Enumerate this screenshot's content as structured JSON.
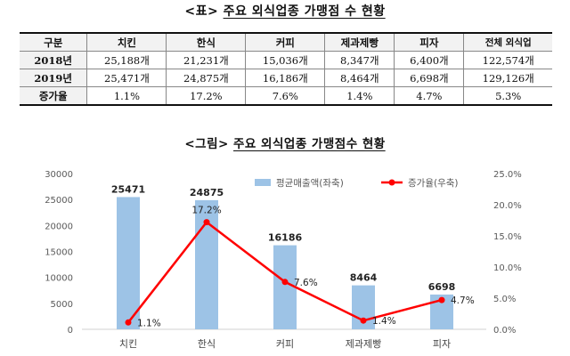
{
  "table_title": {
    "prefix": "<표>",
    "main": "주요 외식업종 가맹점 수 현황"
  },
  "table": {
    "headers": [
      "구분",
      "치킨",
      "한식",
      "커피",
      "제과제빵",
      "피자",
      "전체 외식업"
    ],
    "rows": [
      {
        "label": "2018년",
        "cells": [
          "25,188개",
          "21,231개",
          "15,036개",
          "8,347개",
          "6,400개",
          "122,574개"
        ]
      },
      {
        "label": "2019년",
        "cells": [
          "25,471개",
          "24,875개",
          "16,186개",
          "8,464개",
          "6,698개",
          "129,126개"
        ]
      },
      {
        "label": "증가율",
        "cells": [
          "1.1%",
          "17.2%",
          "7.6%",
          "1.4%",
          "4.7%",
          "5.3%"
        ]
      }
    ]
  },
  "figure_title": {
    "prefix": "<그림>",
    "main": "주요 외식업종 가맹점수 현황"
  },
  "chart_data": {
    "type": "bar",
    "categories": [
      "치킨",
      "한식",
      "커피",
      "제과제빵",
      "피자"
    ],
    "series": [
      {
        "name": "평균매출액(좌축)",
        "type": "bar",
        "axis": "left",
        "values": [
          25471,
          24875,
          16186,
          8464,
          6698
        ],
        "labels": [
          "25471",
          "24875",
          "16186",
          "8464",
          "6698"
        ]
      },
      {
        "name": "증가율(우축)",
        "type": "line",
        "axis": "right",
        "values": [
          1.1,
          17.2,
          7.6,
          1.4,
          4.7
        ],
        "labels": [
          "1.1%",
          "17.2%",
          "7.6%",
          "1.4%",
          "4.7%"
        ]
      }
    ],
    "ylim_left": [
      0,
      30000
    ],
    "left_ticks": [
      0,
      5000,
      10000,
      15000,
      20000,
      25000,
      30000
    ],
    "left_tick_labels": [
      "0",
      "5000",
      "10000",
      "15000",
      "20000",
      "25000",
      "30000"
    ],
    "ylim_right": [
      0,
      25
    ],
    "right_ticks": [
      0,
      5,
      10,
      15,
      20,
      25
    ],
    "right_tick_labels": [
      "0.0%",
      "5.0%",
      "10.0%",
      "15.0%",
      "20.0%",
      "25.0%"
    ],
    "grid": false,
    "legend_position": "top-right",
    "colors": {
      "bar": "#9dc3e6",
      "line": "#ff0000"
    }
  }
}
